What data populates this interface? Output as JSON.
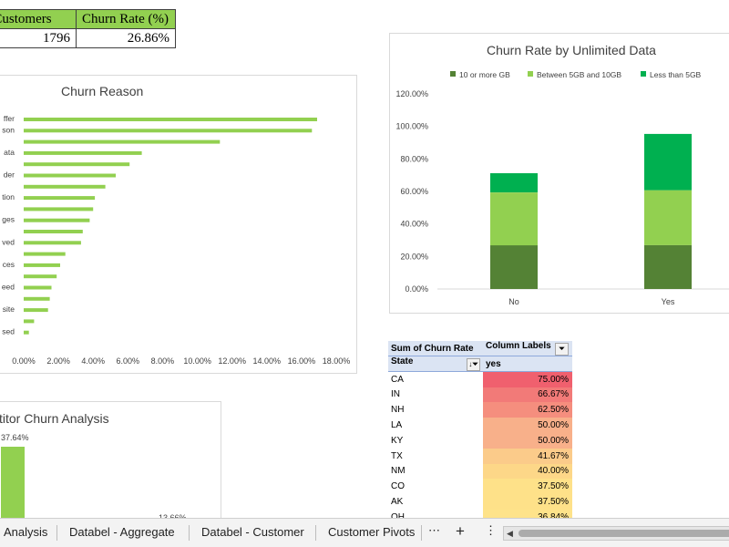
{
  "kpi": {
    "headers": [
      "ned Customers",
      "Churn Rate (%)"
    ],
    "values": [
      "1796",
      "26.86%"
    ]
  },
  "churn_reason": {
    "title": "Churn Reason",
    "category_labels": [
      "ffer",
      "son",
      "",
      "ata",
      "",
      "der",
      "",
      "tion",
      "",
      "ges",
      "",
      "ved",
      "",
      "ces",
      "",
      "eed",
      "",
      "site",
      "",
      "sed"
    ],
    "x_ticks": [
      "0.00%",
      "2.00%",
      "4.00%",
      "6.00%",
      "8.00%",
      "10.00%",
      "12.00%",
      "14.00%",
      "16.00%",
      "18.00%"
    ]
  },
  "competitor": {
    "title": "titor Churn Analysis",
    "label_top": "37.64%",
    "label_small": "13.66%"
  },
  "unlimited": {
    "title": "Churn Rate by Unlimited Data",
    "legend": [
      "10 or more GB",
      "Between 5GB and 10GB",
      "Less than 5GB"
    ],
    "y_ticks": [
      "120.00%",
      "100.00%",
      "80.00%",
      "60.00%",
      "40.00%",
      "20.00%",
      "0.00%"
    ],
    "categories": [
      "No",
      "Yes"
    ]
  },
  "pivot": {
    "header1": "Sum of Churn Rate",
    "header2": "Column Labels",
    "row_header": "State",
    "col_value": "yes",
    "rows": [
      {
        "state": "CA",
        "value": "75.00%"
      },
      {
        "state": "IN",
        "value": "66.67%"
      },
      {
        "state": "NH",
        "value": "62.50%"
      },
      {
        "state": "LA",
        "value": "50.00%"
      },
      {
        "state": "KY",
        "value": "50.00%"
      },
      {
        "state": "TX",
        "value": "41.67%"
      },
      {
        "state": "NM",
        "value": "40.00%"
      },
      {
        "state": "CO",
        "value": "37.50%"
      },
      {
        "state": "AK",
        "value": "37.50%"
      },
      {
        "state": "OH",
        "value": "36.84%"
      }
    ]
  },
  "tabs": [
    "Analysis",
    "Databel - Aggregate",
    "Databel - Customer",
    "Customer Pivots"
  ],
  "tab_icons": {
    "more": "⋯",
    "add": "+",
    "options": "⋮",
    "scroll_left": "◀"
  },
  "colors": {
    "bar_green": "#92d050",
    "dark_green": "#548235",
    "light_green": "#92d050",
    "bright_green": "#00b050"
  },
  "chart_data": [
    {
      "type": "bar",
      "title": "Churn Reason",
      "orientation": "horizontal",
      "categories": [
        "ffer",
        "son",
        "",
        "ata",
        "",
        "der",
        "",
        "tion",
        "",
        "ges",
        "",
        "ved",
        "",
        "ces",
        "",
        "eed",
        "",
        "site",
        "",
        "sed"
      ],
      "values": [
        16.9,
        16.6,
        11.3,
        6.8,
        6.1,
        5.3,
        4.7,
        4.1,
        4.0,
        3.8,
        3.4,
        3.3,
        2.4,
        2.1,
        1.9,
        1.6,
        1.5,
        1.4,
        0.6,
        0.3
      ],
      "xlim": [
        0,
        18
      ],
      "unit": "%"
    },
    {
      "type": "bar",
      "title": "Churn Rate by Unlimited Data",
      "stacked": true,
      "categories": [
        "No",
        "Yes"
      ],
      "series": [
        {
          "name": "10 or more GB",
          "values": [
            26.9,
            27.0
          ]
        },
        {
          "name": "Between 5GB and 10GB",
          "values": [
            32.5,
            33.8
          ]
        },
        {
          "name": "Less than 5GB",
          "values": [
            11.8,
            34.6
          ]
        }
      ],
      "ylim": [
        0,
        120
      ],
      "unit": "%",
      "legend": "top"
    },
    {
      "type": "bar",
      "title": "titor Churn Analysis",
      "values": [
        37.64,
        13.66
      ],
      "unit": "%"
    }
  ]
}
